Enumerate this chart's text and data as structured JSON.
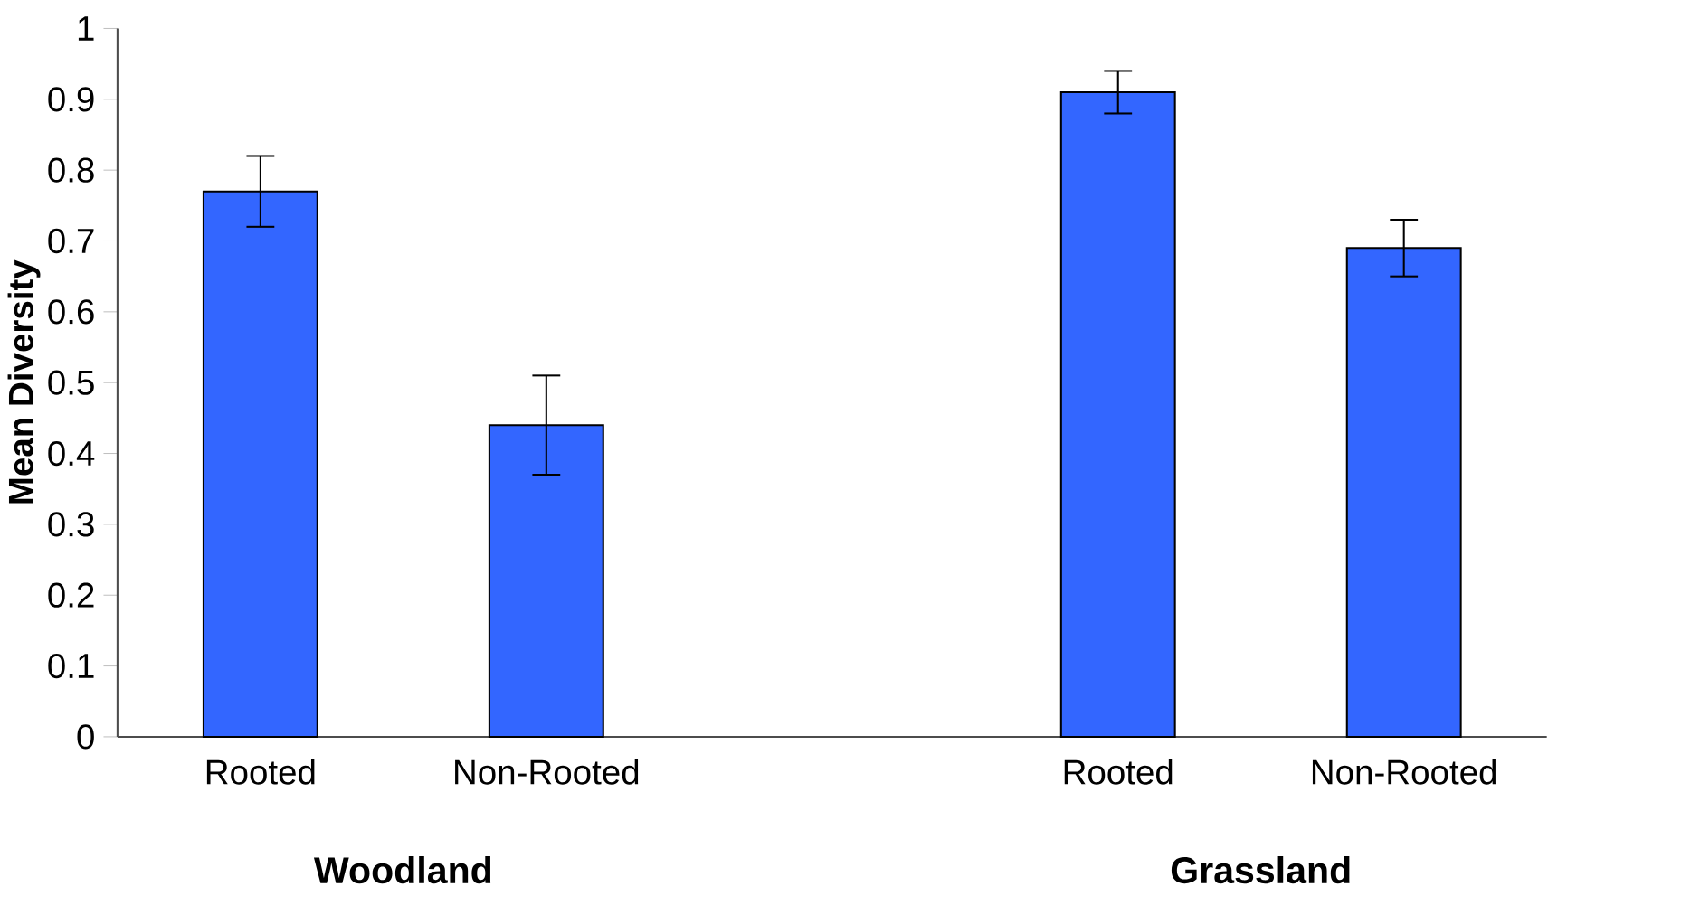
{
  "chart_data": {
    "type": "bar",
    "ylabel": "Mean Diversity",
    "categories": [
      "Rooted",
      "Non-Rooted",
      null,
      "Rooted",
      "Non-Rooted"
    ],
    "values": [
      0.77,
      0.44,
      null,
      0.91,
      0.69
    ],
    "errors": [
      0.05,
      0.07,
      null,
      0.03,
      0.04
    ],
    "color": "#3366ff",
    "ylim": [
      0,
      1
    ],
    "yticks": [
      0,
      0.1,
      0.2,
      0.3,
      0.4,
      0.5,
      0.6,
      0.7,
      0.8,
      0.9,
      1
    ],
    "annotations": [
      "Woodland",
      "Grassland"
    ],
    "grid": false
  }
}
